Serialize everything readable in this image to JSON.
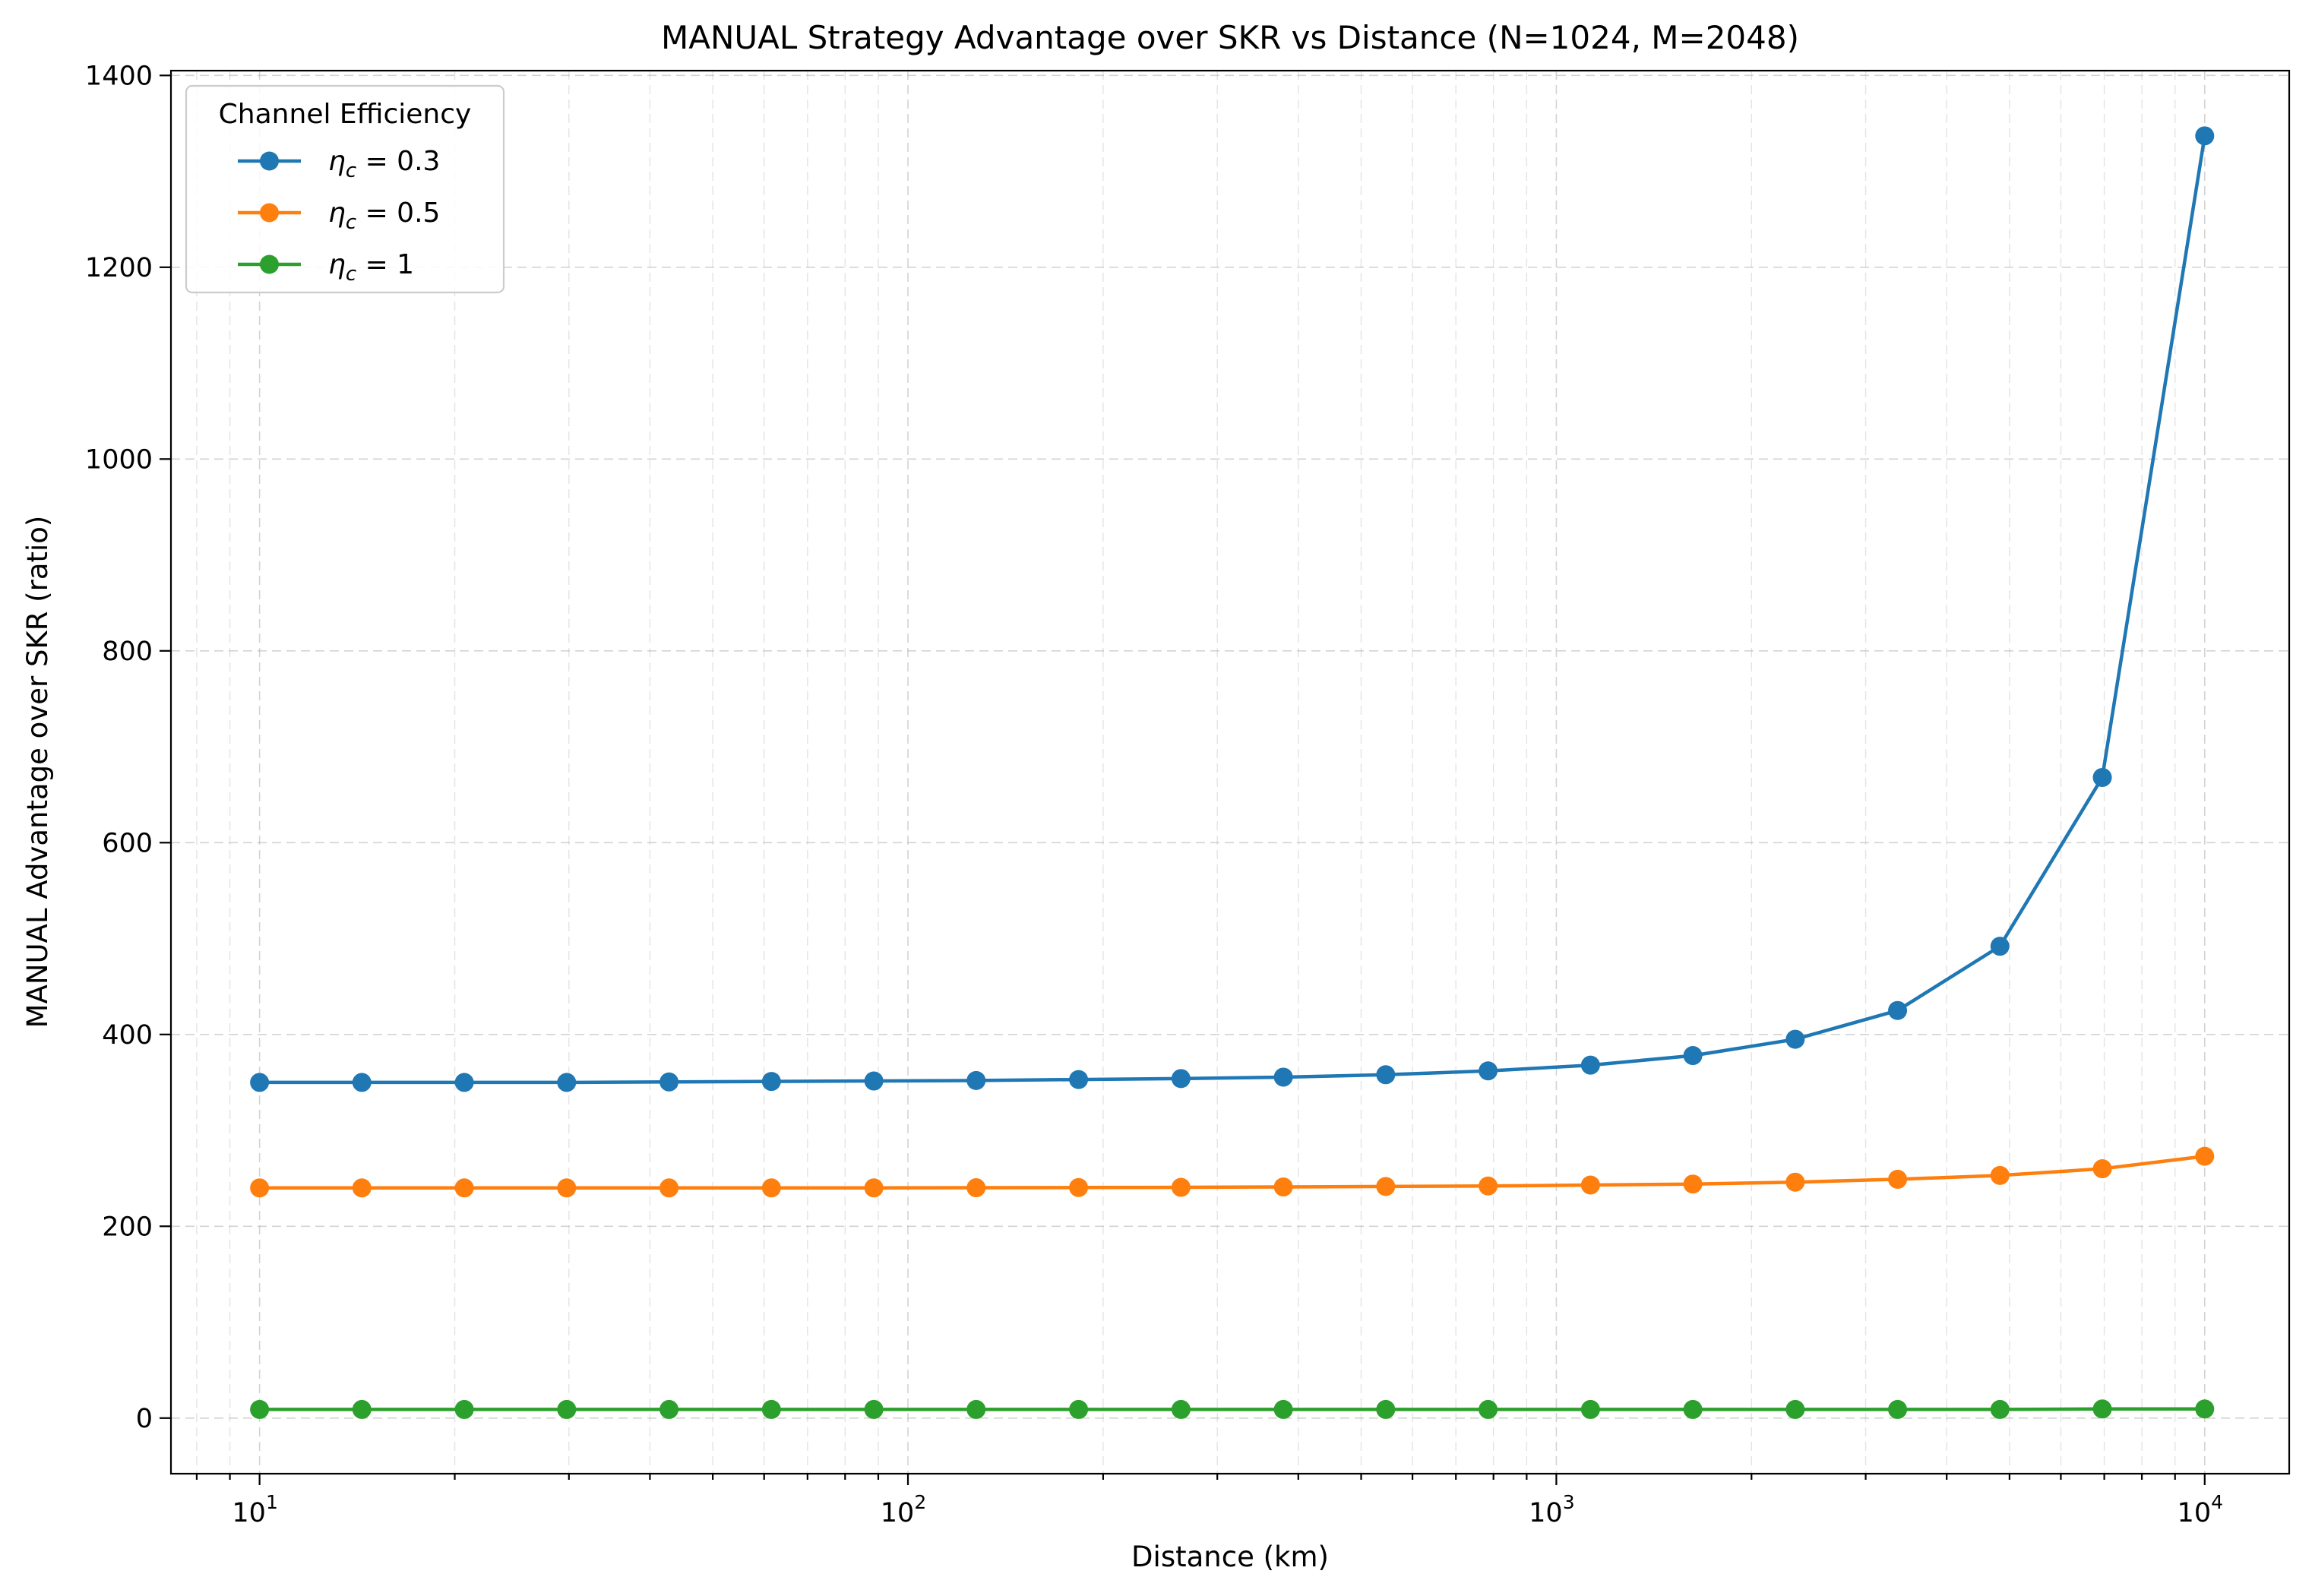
{
  "chart_data": {
    "type": "line",
    "title": "MANUAL Strategy Advantage over SKR vs Distance (N=1024, M=2048)",
    "xlabel": "Distance (km)",
    "ylabel": "MANUAL Advantage over SKR (ratio)",
    "xscale": "log",
    "xlim": [
      7.3,
      13500
    ],
    "ylim": [
      -58,
      1405
    ],
    "grid": true,
    "x_ticks": [
      {
        "value": 10,
        "base": "10",
        "exp": "1"
      },
      {
        "value": 100,
        "base": "10",
        "exp": "2"
      },
      {
        "value": 1000,
        "base": "10",
        "exp": "3"
      },
      {
        "value": 10000,
        "base": "10",
        "exp": "4"
      }
    ],
    "y_ticks": [
      0,
      200,
      400,
      600,
      800,
      1000,
      1200,
      1400
    ],
    "legend": {
      "title": "Channel Efficiency",
      "placement": "top-left"
    },
    "x": [
      10,
      14.38,
      20.69,
      29.76,
      42.81,
      61.58,
      88.59,
      127.4,
      183.3,
      263.7,
      379.3,
      545.6,
      784.8,
      1129,
      1624,
      2336,
      3360,
      4833,
      6952,
      10000
    ],
    "series": [
      {
        "name": "η_c = 0.3",
        "label_main": "η",
        "label_sub": "c",
        "label_rest": " = 0.3",
        "color": "#1f77b4",
        "values": [
          350,
          350,
          350,
          350,
          350.5,
          351,
          351.5,
          352,
          353,
          354,
          355.5,
          358,
          362,
          368,
          378,
          395,
          425,
          492,
          668,
          1337
        ]
      },
      {
        "name": "η_c = 0.5",
        "label_main": "η",
        "label_sub": "c",
        "label_rest": " = 0.5",
        "color": "#ff7f0e",
        "values": [
          240,
          240,
          240,
          240,
          240,
          240,
          240,
          240.2,
          240.4,
          240.6,
          241,
          241.5,
          242,
          243,
          244,
          246,
          249,
          253,
          260,
          273
        ]
      },
      {
        "name": "η_c = 1",
        "label_main": "η",
        "label_sub": "c",
        "label_rest": " = 1",
        "color": "#2ca02c",
        "values": [
          9,
          9,
          9,
          9,
          9,
          9,
          9,
          9,
          9,
          9,
          9,
          9,
          9,
          9,
          9,
          9,
          9,
          9,
          9.5,
          9.5
        ]
      }
    ]
  }
}
